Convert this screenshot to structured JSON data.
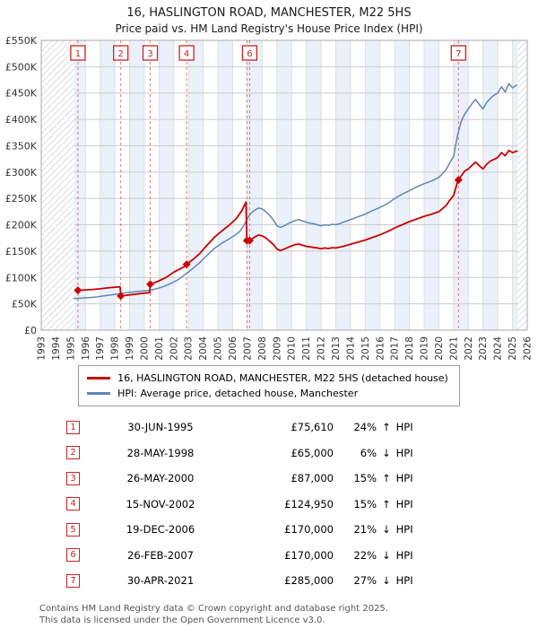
{
  "header": {
    "title": "16, HASLINGTON ROAD, MANCHESTER, M22 5HS",
    "subtitle": "Price paid vs. HM Land Registry's House Price Index (HPI)"
  },
  "chart_data": {
    "type": "line",
    "title": "16, HASLINGTON ROAD, MANCHESTER, M22 5HS",
    "subtitle": "Price paid vs. HM Land Registry's House Price Index (HPI)",
    "xlim": [
      1993,
      2026
    ],
    "ylim": [
      0,
      550000
    ],
    "grid": true,
    "xticks": [
      1993,
      1994,
      1995,
      1996,
      1997,
      1998,
      1999,
      2000,
      2001,
      2002,
      2003,
      2004,
      2005,
      2006,
      2007,
      2008,
      2009,
      2010,
      2011,
      2012,
      2013,
      2014,
      2015,
      2016,
      2017,
      2018,
      2019,
      2020,
      2021,
      2022,
      2023,
      2024,
      2025,
      2026
    ],
    "ytick_values": [
      0,
      50000,
      100000,
      150000,
      200000,
      250000,
      300000,
      350000,
      400000,
      450000,
      500000,
      550000
    ],
    "ytick_labels": [
      "£0",
      "£50K",
      "£100K",
      "£150K",
      "£200K",
      "£250K",
      "£300K",
      "£350K",
      "£400K",
      "£450K",
      "£500K",
      "£550K"
    ],
    "hatch_regions": [
      [
        1993,
        1995.25
      ],
      [
        2025.35,
        2026
      ]
    ],
    "colors": {
      "series_red": "#cc0000",
      "series_blue": "#5e87b6",
      "band": "#eaf1fa",
      "grid_h": "#cccccc",
      "grid_v": "#dfdfdf",
      "dashed_sale": "#e05555",
      "badge": "#cc2222",
      "border": "#aaaaaa"
    },
    "series": [
      {
        "name": "16, HASLINGTON ROAD, MANCHESTER, M22 5HS (detached house)",
        "color": "#cc0000",
        "points": [
          [
            1995.49,
            75610
          ],
          [
            1996,
            76500
          ],
          [
            1996.5,
            77300
          ],
          [
            1997,
            78500
          ],
          [
            1997.5,
            80200
          ],
          [
            1998,
            81600
          ],
          [
            1998.35,
            82300
          ],
          [
            1998.4,
            65000
          ],
          [
            1999,
            67000
          ],
          [
            1999.5,
            68600
          ],
          [
            2000,
            70300
          ],
          [
            2000.37,
            71100
          ],
          [
            2000.4,
            87000
          ],
          [
            2001,
            93600
          ],
          [
            2001.5,
            100300
          ],
          [
            2002,
            110200
          ],
          [
            2002.5,
            117400
          ],
          [
            2002.85,
            122600
          ],
          [
            2002.87,
            124950
          ],
          [
            2003.25,
            133000
          ],
          [
            2003.75,
            145000
          ],
          [
            2004.25,
            161000
          ],
          [
            2004.75,
            176000
          ],
          [
            2005.25,
            188000
          ],
          [
            2005.75,
            199000
          ],
          [
            2006.25,
            212000
          ],
          [
            2006.6,
            226000
          ],
          [
            2006.9,
            243000
          ],
          [
            2006.96,
            170000
          ],
          [
            2007.15,
            170000
          ],
          [
            2007.5,
            177000
          ],
          [
            2007.75,
            180500
          ],
          [
            2008,
            179000
          ],
          [
            2008.25,
            175000
          ],
          [
            2008.5,
            169000
          ],
          [
            2008.75,
            163000
          ],
          [
            2009,
            154000
          ],
          [
            2009.25,
            151000
          ],
          [
            2009.5,
            154000
          ],
          [
            2009.75,
            157000
          ],
          [
            2010,
            160000
          ],
          [
            2010.25,
            162500
          ],
          [
            2010.5,
            163500
          ],
          [
            2010.75,
            161000
          ],
          [
            2011,
            159000
          ],
          [
            2011.25,
            158000
          ],
          [
            2011.5,
            157000
          ],
          [
            2011.75,
            156000
          ],
          [
            2012,
            154500
          ],
          [
            2012.25,
            156000
          ],
          [
            2012.5,
            155000
          ],
          [
            2012.75,
            156500
          ],
          [
            2013,
            156000
          ],
          [
            2013.5,
            159000
          ],
          [
            2014,
            163000
          ],
          [
            2014.5,
            167000
          ],
          [
            2015,
            171000
          ],
          [
            2015.5,
            176000
          ],
          [
            2016,
            181000
          ],
          [
            2016.5,
            187000
          ],
          [
            2017,
            194000
          ],
          [
            2017.5,
            200000
          ],
          [
            2018,
            206000
          ],
          [
            2018.5,
            211000
          ],
          [
            2019,
            216000
          ],
          [
            2019.5,
            220000
          ],
          [
            2020,
            225000
          ],
          [
            2020.5,
            237000
          ],
          [
            2020.75,
            247000
          ],
          [
            2021,
            256000
          ],
          [
            2021.25,
            280000
          ],
          [
            2021.33,
            285000
          ],
          [
            2021.5,
            292000
          ],
          [
            2021.75,
            302000
          ],
          [
            2022,
            306000
          ],
          [
            2022.25,
            313000
          ],
          [
            2022.5,
            319000
          ],
          [
            2022.75,
            312000
          ],
          [
            2023,
            306000
          ],
          [
            2023.25,
            315000
          ],
          [
            2023.5,
            321000
          ],
          [
            2023.75,
            324000
          ],
          [
            2024,
            328000
          ],
          [
            2024.25,
            337000
          ],
          [
            2024.5,
            331000
          ],
          [
            2024.75,
            341000
          ],
          [
            2025,
            337000
          ],
          [
            2025.3,
            340000
          ]
        ]
      },
      {
        "name": "HPI: Average price, detached house, Manchester",
        "color": "#5e87b6",
        "points": [
          [
            1995.25,
            60000
          ],
          [
            1995.75,
            61000
          ],
          [
            1996.25,
            61600
          ],
          [
            1996.75,
            63000
          ],
          [
            1997.25,
            65000
          ],
          [
            1997.75,
            67000
          ],
          [
            1998.25,
            69000
          ],
          [
            1998.75,
            71000
          ],
          [
            1999.25,
            72500
          ],
          [
            1999.75,
            74000
          ],
          [
            2000.25,
            75500
          ],
          [
            2000.75,
            78000
          ],
          [
            2001.25,
            82000
          ],
          [
            2001.75,
            88000
          ],
          [
            2002.25,
            95000
          ],
          [
            2002.75,
            105000
          ],
          [
            2003.25,
            116000
          ],
          [
            2003.75,
            128000
          ],
          [
            2004.25,
            142000
          ],
          [
            2004.75,
            155000
          ],
          [
            2005.25,
            165000
          ],
          [
            2005.75,
            173000
          ],
          [
            2006.25,
            182000
          ],
          [
            2006.5,
            188000
          ],
          [
            2006.75,
            198000
          ],
          [
            2007,
            212000
          ],
          [
            2007.25,
            222000
          ],
          [
            2007.5,
            228000
          ],
          [
            2007.75,
            232000
          ],
          [
            2008,
            230000
          ],
          [
            2008.25,
            225000
          ],
          [
            2008.5,
            218000
          ],
          [
            2008.75,
            210000
          ],
          [
            2009,
            198000
          ],
          [
            2009.25,
            195000
          ],
          [
            2009.5,
            198000
          ],
          [
            2009.75,
            202000
          ],
          [
            2010,
            205000
          ],
          [
            2010.25,
            208000
          ],
          [
            2010.5,
            210000
          ],
          [
            2010.75,
            207000
          ],
          [
            2011,
            205000
          ],
          [
            2011.25,
            203000
          ],
          [
            2011.5,
            202000
          ],
          [
            2011.75,
            200000
          ],
          [
            2012,
            198000
          ],
          [
            2012.25,
            200000
          ],
          [
            2012.5,
            199000
          ],
          [
            2012.75,
            201000
          ],
          [
            2013,
            200000
          ],
          [
            2013.25,
            202000
          ],
          [
            2013.5,
            205000
          ],
          [
            2013.75,
            207000
          ],
          [
            2014,
            210000
          ],
          [
            2014.5,
            215000
          ],
          [
            2015,
            220000
          ],
          [
            2015.5,
            227000
          ],
          [
            2016,
            233000
          ],
          [
            2016.5,
            240000
          ],
          [
            2017,
            250000
          ],
          [
            2017.5,
            258000
          ],
          [
            2018,
            265000
          ],
          [
            2018.5,
            272000
          ],
          [
            2019,
            278000
          ],
          [
            2019.5,
            283000
          ],
          [
            2020,
            290000
          ],
          [
            2020.5,
            305000
          ],
          [
            2020.75,
            318000
          ],
          [
            2021,
            330000
          ],
          [
            2021.25,
            368000
          ],
          [
            2021.5,
            395000
          ],
          [
            2021.75,
            410000
          ],
          [
            2022,
            420000
          ],
          [
            2022.25,
            430000
          ],
          [
            2022.5,
            438000
          ],
          [
            2022.75,
            428000
          ],
          [
            2023,
            420000
          ],
          [
            2023.25,
            432000
          ],
          [
            2023.5,
            440000
          ],
          [
            2023.75,
            446000
          ],
          [
            2024,
            450000
          ],
          [
            2024.25,
            462000
          ],
          [
            2024.5,
            452000
          ],
          [
            2024.75,
            468000
          ],
          [
            2025,
            460000
          ],
          [
            2025.3,
            465000
          ]
        ]
      }
    ],
    "sales": [
      {
        "n": "1",
        "x": 1995.49,
        "price": 75610
      },
      {
        "n": "2",
        "x": 1998.4,
        "price": 65000
      },
      {
        "n": "3",
        "x": 2000.4,
        "price": 87000
      },
      {
        "n": "4",
        "x": 2002.87,
        "price": 124950
      },
      {
        "n": "5",
        "x": 2006.96,
        "price": 170000,
        "label_visible": false
      },
      {
        "n": "6",
        "x": 2007.15,
        "price": 170000
      },
      {
        "n": "7",
        "x": 2021.33,
        "price": 285000
      }
    ]
  },
  "legend": {
    "items": [
      {
        "label": "16, HASLINGTON ROAD, MANCHESTER, M22 5HS (detached house)",
        "color": "#cc0000"
      },
      {
        "label": "HPI: Average price, detached house, Manchester",
        "color": "#5e87b6"
      }
    ]
  },
  "table": {
    "rows": [
      {
        "num": "1",
        "date": "30-JUN-1995",
        "price": "£75,610",
        "pct": "24%",
        "dir": "↑",
        "hpi": "HPI"
      },
      {
        "num": "2",
        "date": "28-MAY-1998",
        "price": "£65,000",
        "pct": "6%",
        "dir": "↓",
        "hpi": "HPI"
      },
      {
        "num": "3",
        "date": "26-MAY-2000",
        "price": "£87,000",
        "pct": "15%",
        "dir": "↑",
        "hpi": "HPI"
      },
      {
        "num": "4",
        "date": "15-NOV-2002",
        "price": "£124,950",
        "pct": "15%",
        "dir": "↑",
        "hpi": "HPI"
      },
      {
        "num": "5",
        "date": "19-DEC-2006",
        "price": "£170,000",
        "pct": "21%",
        "dir": "↓",
        "hpi": "HPI"
      },
      {
        "num": "6",
        "date": "26-FEB-2007",
        "price": "£170,000",
        "pct": "22%",
        "dir": "↓",
        "hpi": "HPI"
      },
      {
        "num": "7",
        "date": "30-APR-2021",
        "price": "£285,000",
        "pct": "27%",
        "dir": "↓",
        "hpi": "HPI"
      }
    ]
  },
  "footer": {
    "line1": "Contains HM Land Registry data © Crown copyright and database right 2025.",
    "line2": "This data is licensed under the Open Government Licence v3.0."
  }
}
